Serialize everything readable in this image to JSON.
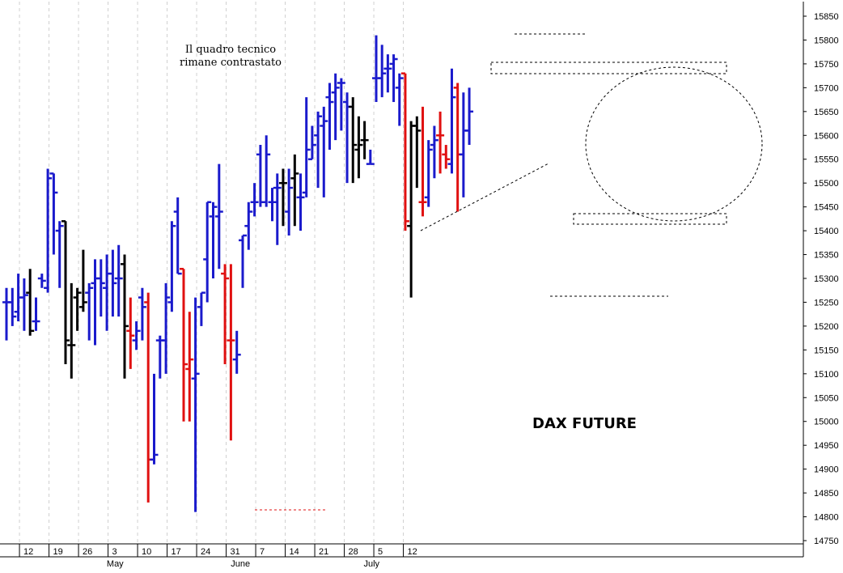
{
  "chart_data": {
    "type": "ohlc",
    "title": "DAX FUTURE",
    "annotation": [
      "Il quadro tecnico",
      "rimane contrastato"
    ],
    "ylim": [
      14750,
      15850
    ],
    "y_ticks": [
      14750,
      14800,
      14850,
      14900,
      14950,
      15000,
      15050,
      15100,
      15150,
      15200,
      15250,
      15300,
      15350,
      15400,
      15450,
      15500,
      15550,
      15600,
      15650,
      15700,
      15750,
      15800,
      15850
    ],
    "x_day_ticks": [
      {
        "i": 2.2,
        "label": "12"
      },
      {
        "i": 7.2,
        "label": "19"
      },
      {
        "i": 12.2,
        "label": "26"
      },
      {
        "i": 17.2,
        "label": "3"
      },
      {
        "i": 22.2,
        "label": "10"
      },
      {
        "i": 27.2,
        "label": "17"
      },
      {
        "i": 32.2,
        "label": "24"
      },
      {
        "i": 37.2,
        "label": "31"
      },
      {
        "i": 42.2,
        "label": "7"
      },
      {
        "i": 47.2,
        "label": "14"
      },
      {
        "i": 52.2,
        "label": "21"
      },
      {
        "i": 57.2,
        "label": "28"
      },
      {
        "i": 62.2,
        "label": "5"
      },
      {
        "i": 67.2,
        "label": "12"
      }
    ],
    "x_month_labels": [
      {
        "i": 16.7,
        "label": "May"
      },
      {
        "i": 37.7,
        "label": "June"
      },
      {
        "i": 60.2,
        "label": "July"
      }
    ],
    "colors": {
      "up": "#1a1acc",
      "down": "#e01010",
      "neutral": "#000000"
    },
    "bars": [
      {
        "o": 15250,
        "h": 15280,
        "l": 15170,
        "c": 15250,
        "col": "up"
      },
      {
        "o": 15250,
        "h": 15280,
        "l": 15200,
        "c": 15220,
        "col": "up"
      },
      {
        "o": 15230,
        "h": 15310,
        "l": 15210,
        "c": 15260,
        "col": "up"
      },
      {
        "o": 15260,
        "h": 15300,
        "l": 15190,
        "c": 15265,
        "col": "up"
      },
      {
        "o": 15270,
        "h": 15320,
        "l": 15180,
        "c": 15190,
        "col": "neutral"
      },
      {
        "o": 15210,
        "h": 15260,
        "l": 15190,
        "c": 15210,
        "col": "up"
      },
      {
        "o": 15300,
        "h": 15310,
        "l": 15280,
        "c": 15295,
        "col": "up"
      },
      {
        "o": 15280,
        "h": 15530,
        "l": 15270,
        "c": 15510,
        "col": "up"
      },
      {
        "o": 15520,
        "h": 15520,
        "l": 15350,
        "c": 15480,
        "col": "up"
      },
      {
        "o": 15400,
        "h": 15420,
        "l": 15280,
        "c": 15410,
        "col": "up"
      },
      {
        "o": 15420,
        "h": 15420,
        "l": 15120,
        "c": 15170,
        "col": "neutral"
      },
      {
        "o": 15160,
        "h": 15290,
        "l": 15090,
        "c": 15160,
        "col": "neutral"
      },
      {
        "o": 15260,
        "h": 15280,
        "l": 15190,
        "c": 15270,
        "col": "neutral"
      },
      {
        "o": 15240,
        "h": 15360,
        "l": 15230,
        "c": 15250,
        "col": "neutral"
      },
      {
        "o": 15270,
        "h": 15290,
        "l": 15170,
        "c": 15280,
        "col": "up"
      },
      {
        "o": 15290,
        "h": 15340,
        "l": 15160,
        "c": 15300,
        "col": "up"
      },
      {
        "o": 15300,
        "h": 15340,
        "l": 15220,
        "c": 15290,
        "col": "up"
      },
      {
        "o": 15280,
        "h": 15350,
        "l": 15190,
        "c": 15310,
        "col": "up"
      },
      {
        "o": 15310,
        "h": 15360,
        "l": 15220,
        "c": 15290,
        "col": "up"
      },
      {
        "o": 15300,
        "h": 15370,
        "l": 15220,
        "c": 15300,
        "col": "up"
      },
      {
        "o": 15330,
        "h": 15350,
        "l": 15090,
        "c": 15200,
        "col": "neutral"
      },
      {
        "o": 15190,
        "h": 15260,
        "l": 15110,
        "c": 15180,
        "col": "down"
      },
      {
        "o": 15170,
        "h": 15210,
        "l": 15150,
        "c": 15190,
        "col": "up"
      },
      {
        "o": 15260,
        "h": 15280,
        "l": 15170,
        "c": 15240,
        "col": "up"
      },
      {
        "o": 15250,
        "h": 15270,
        "l": 14830,
        "c": 14920,
        "col": "down"
      },
      {
        "o": 14920,
        "h": 15100,
        "l": 14910,
        "c": 14930,
        "col": "up"
      },
      {
        "o": 15170,
        "h": 15180,
        "l": 15090,
        "c": 15170,
        "col": "up"
      },
      {
        "o": 15170,
        "h": 15290,
        "l": 15100,
        "c": 15260,
        "col": "up"
      },
      {
        "o": 15250,
        "h": 15420,
        "l": 15230,
        "c": 15410,
        "col": "up"
      },
      {
        "o": 15440,
        "h": 15470,
        "l": 15310,
        "c": 15310,
        "col": "up"
      },
      {
        "o": 15320,
        "h": 15320,
        "l": 15000,
        "c": 15120,
        "col": "down"
      },
      {
        "o": 15110,
        "h": 15230,
        "l": 15000,
        "c": 15130,
        "col": "down"
      },
      {
        "o": 15090,
        "h": 15260,
        "l": 14810,
        "c": 15100,
        "col": "up"
      },
      {
        "o": 15240,
        "h": 15270,
        "l": 15200,
        "c": 15270,
        "col": "up"
      },
      {
        "o": 15340,
        "h": 15460,
        "l": 15250,
        "c": 15460,
        "col": "up"
      },
      {
        "o": 15430,
        "h": 15460,
        "l": 15300,
        "c": 15450,
        "col": "up"
      },
      {
        "o": 15430,
        "h": 15540,
        "l": 15320,
        "c": 15440,
        "col": "up"
      },
      {
        "o": 15310,
        "h": 15330,
        "l": 15120,
        "c": 15300,
        "col": "down"
      },
      {
        "o": 15170,
        "h": 15330,
        "l": 14960,
        "c": 15170,
        "col": "down"
      },
      {
        "o": 15130,
        "h": 15190,
        "l": 15100,
        "c": 15140,
        "col": "up"
      },
      {
        "o": 15380,
        "h": 15390,
        "l": 15280,
        "c": 15390,
        "col": "up"
      },
      {
        "o": 15410,
        "h": 15460,
        "l": 15360,
        "c": 15440,
        "col": "up"
      },
      {
        "o": 15460,
        "h": 15500,
        "l": 15430,
        "c": 15460,
        "col": "up"
      },
      {
        "o": 15560,
        "h": 15580,
        "l": 15450,
        "c": 15460,
        "col": "up"
      },
      {
        "o": 15460,
        "h": 15600,
        "l": 15450,
        "c": 15560,
        "col": "up"
      },
      {
        "o": 15460,
        "h": 15490,
        "l": 15420,
        "c": 15460,
        "col": "up"
      }
    ]
  }
}
